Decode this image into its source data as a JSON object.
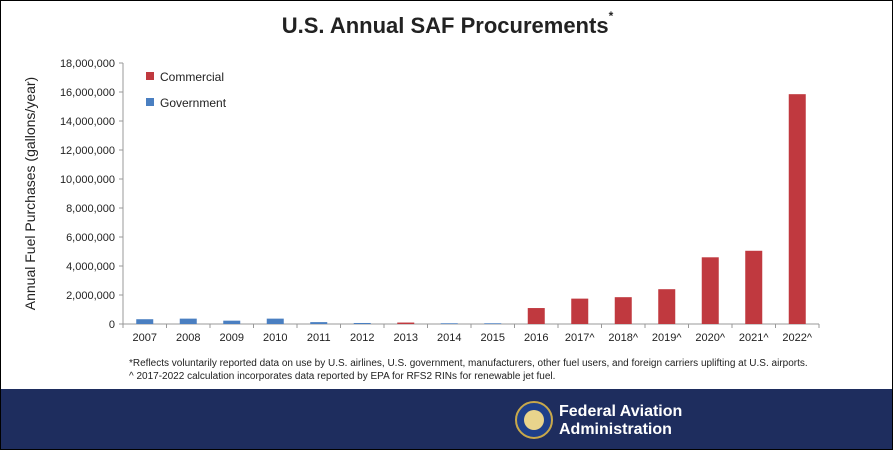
{
  "title": "U.S. Annual SAF Procurements",
  "title_mark": "*",
  "footnotes": [
    "*Reflects voluntarily reported data on use by U.S. airlines, U.S. government, manufacturers, other fuel users, and foreign carriers uplifting at U.S. airports.",
    "^ 2017-2022 calculation incorporates data reported by EPA for RFS2 RINs for renewable jet fuel."
  ],
  "banner": {
    "org_line1": "Federal Aviation",
    "org_line2": "Administration"
  },
  "chart_data": {
    "type": "bar",
    "ylabel": "Annual Fuel Purchases (gallons/year)",
    "xlabel": "",
    "ylim": [
      0,
      18000000
    ],
    "yticks": [
      "0",
      "2,000,000",
      "4,000,000",
      "6,000,000",
      "8,000,000",
      "10,000,000",
      "12,000,000",
      "14,000,000",
      "16,000,000",
      "18,000,000"
    ],
    "categories": [
      "2007",
      "2008",
      "2009",
      "2010",
      "2011",
      "2012",
      "2013",
      "2014",
      "2015",
      "2016",
      "2017^",
      "2018^",
      "2019^",
      "2020^",
      "2021^",
      "2022^"
    ],
    "legend_position": "top-left",
    "series": [
      {
        "name": "Commercial",
        "color": "#c0393f",
        "values": [
          0,
          0,
          0,
          0,
          0,
          0,
          100000,
          0,
          0,
          1100000,
          1750000,
          1850000,
          2400000,
          4600000,
          5050000,
          15850000
        ]
      },
      {
        "name": "Government",
        "color": "#4a7fc1",
        "values": [
          330000,
          370000,
          230000,
          370000,
          130000,
          70000,
          0,
          50000,
          50000,
          0,
          0,
          0,
          0,
          0,
          0,
          0
        ]
      }
    ]
  }
}
